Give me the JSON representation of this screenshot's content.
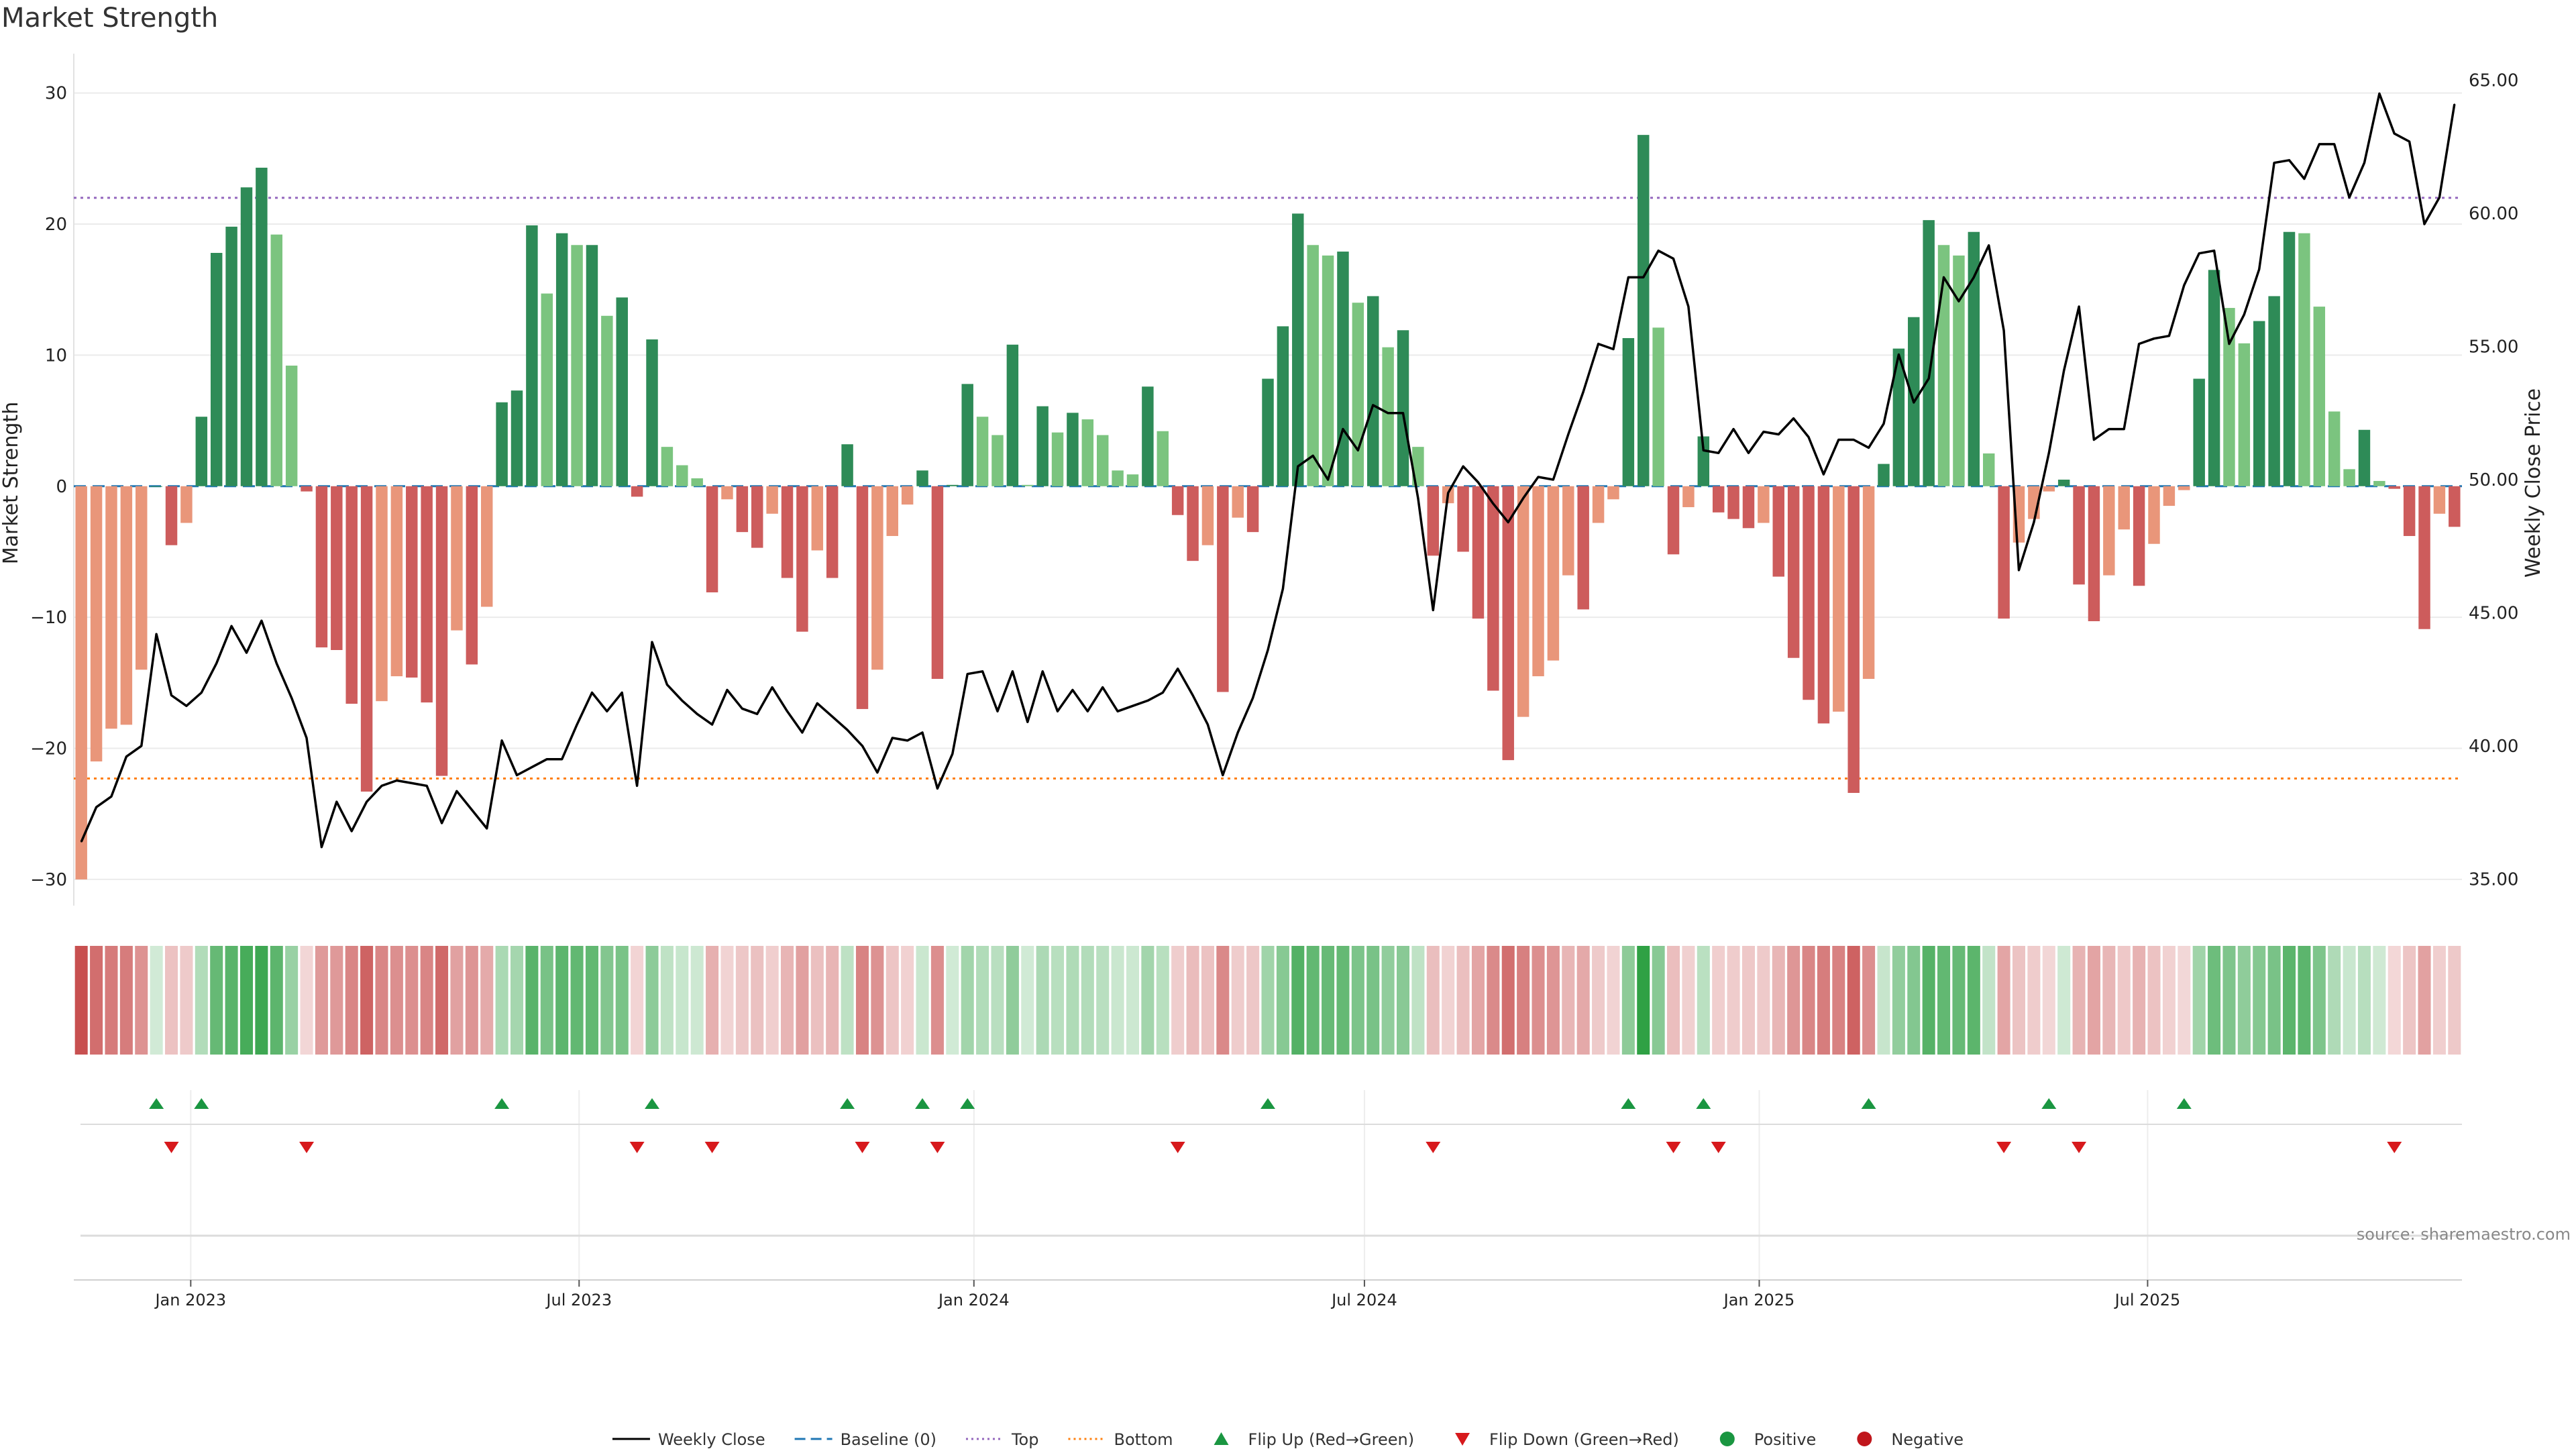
{
  "title": "Market Strength",
  "source": "source: sharemaestro.com",
  "axes": {
    "y_left_label": "Market Strength",
    "y_right_label": "Weekly Close Price",
    "y_left_ticks": [
      "30",
      "20",
      "10",
      "0",
      "−10",
      "−20",
      "−30"
    ],
    "y_right_ticks": [
      "65.00",
      "60.00",
      "55.00",
      "50.00",
      "45.00",
      "40.00",
      "35.00"
    ],
    "x_ticks": [
      "Jan 2023",
      "Jul 2023",
      "Jan 2024",
      "Jul 2024",
      "Jan 2025",
      "Jul 2025"
    ]
  },
  "legend": [
    {
      "label": "Weekly Close",
      "kind": "line",
      "color": "#000000"
    },
    {
      "label": "Baseline (0)",
      "kind": "dash",
      "color": "#1f77b4"
    },
    {
      "label": "Top",
      "kind": "dot",
      "color": "#9467bd"
    },
    {
      "label": "Bottom",
      "kind": "dot",
      "color": "#ff7f0e"
    },
    {
      "label": "Flip Up (Red→Green)",
      "kind": "tri-up",
      "color": "#1a9641"
    },
    {
      "label": "Flip Down (Green→Red)",
      "kind": "tri-down",
      "color": "#d7191c"
    },
    {
      "label": "Positive",
      "kind": "circle",
      "color": "#1a9641"
    },
    {
      "label": "Negative",
      "kind": "circle",
      "color": "#c0161c"
    }
  ],
  "colors": {
    "strong_green": "#2e8b57",
    "light_green": "#7bc47f",
    "strong_red": "#cd5c5c",
    "light_red": "#e9967a",
    "price_line": "#000000",
    "top_line": "#9467bd",
    "bottom_line": "#ff7f0e",
    "baseline": "#1f77b4"
  },
  "chart_data": {
    "type": "bar",
    "x_start": "2022-11-11",
    "x_step_days": 7,
    "left_ylim": [
      -32,
      33
    ],
    "right_ylim": [
      34,
      66
    ],
    "top_level": 22,
    "bottom_level": -22.3,
    "strength": [
      -30,
      -21,
      -18.5,
      -18.2,
      -14,
      0,
      -4.5,
      -2.8,
      5.3,
      17.8,
      19.8,
      22.8,
      24.3,
      19.2,
      9.2,
      -0.4,
      -12.3,
      -12.5,
      -16.6,
      -23.3,
      -16.4,
      -14.5,
      -14.6,
      -16.5,
      -22.1,
      -11,
      -13.6,
      -9.2,
      6.4,
      7.3,
      19.9,
      14.7,
      19.3,
      18.4,
      18.4,
      13,
      14.4,
      -0.8,
      11.2,
      3,
      1.6,
      0.6,
      -8.1,
      -1,
      -3.5,
      -4.7,
      -2.1,
      -7,
      -11.1,
      -4.9,
      -7,
      3.2,
      -17,
      -14,
      -3.8,
      -1.4,
      1.2,
      -14.7,
      0.1,
      7.8,
      5.3,
      3.9,
      10.8,
      0.1,
      6.1,
      4.1,
      5.6,
      5.1,
      3.9,
      1.2,
      0.9,
      7.6,
      4.2,
      -2.2,
      -5.7,
      -4.5,
      -15.7,
      -2.4,
      -3.5,
      8.2,
      12.2,
      20.8,
      18.4,
      17.6,
      17.9,
      14,
      14.5,
      10.6,
      11.9,
      3,
      -5.3,
      -1.3,
      -5,
      -10.1,
      -15.6,
      -20.9,
      -17.6,
      -14.5,
      -13.3,
      -6.8,
      -9.4,
      -2.8,
      -1,
      11.3,
      26.8,
      12.1,
      -5.2,
      -1.6,
      3.8,
      -2,
      -2.5,
      -3.2,
      -2.8,
      -6.9,
      -13.1,
      -16.3,
      -18.1,
      -17.2,
      -23.4,
      -14.7,
      1.7,
      10.5,
      12.9,
      20.3,
      18.4,
      17.6,
      19.4,
      2.5,
      -10.1,
      -4.3,
      -2.5,
      -0.4,
      0.5,
      -7.5,
      -10.3,
      -6.8,
      -3.3,
      -7.6,
      -4.4,
      -1.5,
      -0.3,
      8.2,
      16.5,
      13.6,
      10.9,
      12.6,
      14.5,
      19.4,
      19.3,
      13.7,
      5.7,
      1.3,
      4.3,
      0.4,
      -0.2,
      -3.8,
      -10.9,
      -2.1,
      -3.1
    ],
    "weekly_close": [
      36.4,
      37.7,
      38.1,
      39.6,
      40,
      44.2,
      41.9,
      41.5,
      42,
      43.1,
      44.5,
      43.5,
      44.7,
      43.1,
      41.8,
      40.3,
      36.2,
      37.9,
      36.8,
      37.9,
      38.5,
      38.7,
      38.6,
      38.5,
      37.1,
      38.3,
      37.6,
      36.9,
      40.2,
      38.9,
      39.2,
      39.5,
      39.5,
      40.8,
      42,
      41.3,
      42,
      38.5,
      43.9,
      42.3,
      41.7,
      41.2,
      40.8,
      42.1,
      41.4,
      41.2,
      42.2,
      41.3,
      40.5,
      41.6,
      41.1,
      40.6,
      40,
      39,
      40.3,
      40.2,
      40.5,
      38.4,
      39.7,
      42.7,
      42.8,
      41.3,
      42.8,
      40.9,
      42.8,
      41.3,
      42.1,
      41.3,
      42.2,
      41.3,
      41.5,
      41.7,
      42,
      42.9,
      41.9,
      40.8,
      38.9,
      40.5,
      41.8,
      43.6,
      45.9,
      50.5,
      50.9,
      50,
      51.9,
      51.1,
      52.8,
      52.5,
      52.5,
      49.3,
      45.1,
      49.5,
      50.5,
      49.9,
      49.1,
      48.4,
      49.3,
      50.1,
      50,
      51.7,
      53.3,
      55.1,
      54.9,
      57.6,
      57.6,
      58.6,
      58.3,
      56.5,
      51.1,
      51,
      51.9,
      51,
      51.8,
      51.7,
      52.3,
      51.6,
      50.2,
      51.5,
      51.5,
      51.2,
      52.1,
      54.7,
      52.9,
      53.8,
      57.6,
      56.7,
      57.6,
      58.8,
      55.6,
      46.6,
      48.4,
      51,
      54.1,
      56.5,
      51.5,
      51.9,
      51.9,
      55.1,
      55.3,
      55.4,
      57.3,
      58.5,
      58.6,
      55.1,
      56.2,
      57.9,
      61.9,
      62,
      61.3,
      62.6,
      62.6,
      60.6,
      61.9,
      64.5,
      63,
      62.7,
      59.6,
      60.6,
      64.1
    ],
    "flip_up_weeks": [
      5,
      8,
      28,
      38,
      51,
      56,
      59,
      79,
      103,
      108,
      119,
      131,
      140
    ],
    "flip_down_weeks": [
      6,
      15,
      37,
      42,
      52,
      57,
      73,
      90,
      106,
      109,
      128,
      133,
      154
    ]
  }
}
